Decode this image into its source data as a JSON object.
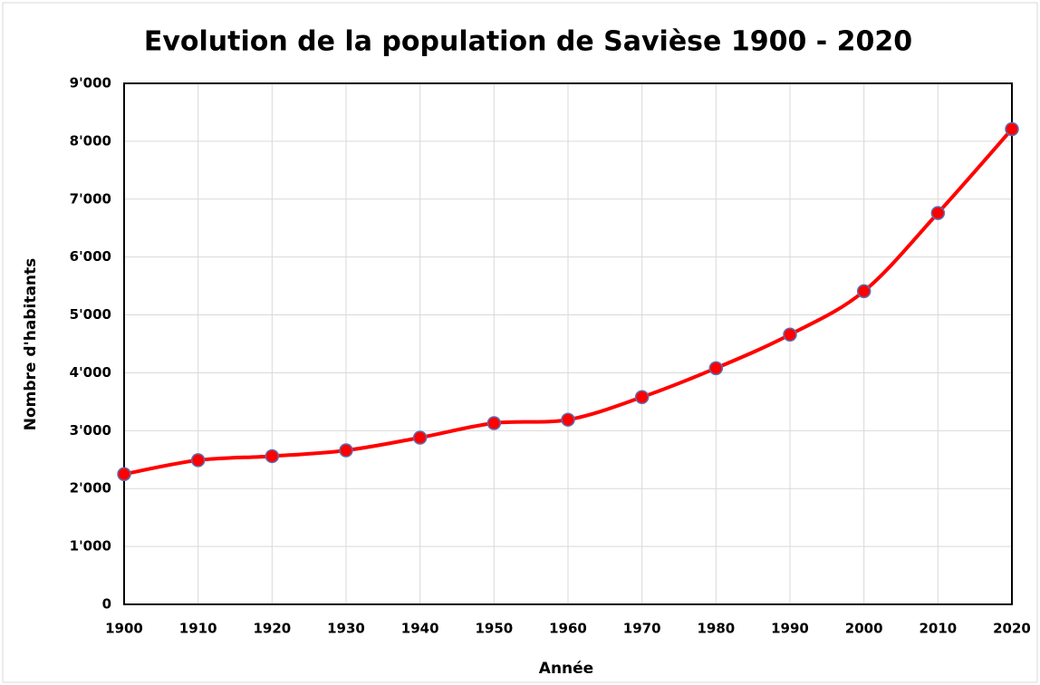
{
  "chart_data": {
    "type": "line",
    "title": "Evolution de la population de Savièse 1900 - 2020",
    "x_label": "Année",
    "y_label": "Nombre d'habitants",
    "x": [
      1900,
      1910,
      1920,
      1930,
      1940,
      1950,
      1960,
      1970,
      1980,
      1990,
      2000,
      2010,
      2020
    ],
    "series": [
      {
        "name": "Population",
        "color": "#ff0000",
        "values": [
          2250,
          2490,
          2560,
          2660,
          2880,
          3130,
          3190,
          3580,
          4080,
          4660,
          5410,
          6760,
          8210
        ]
      }
    ],
    "xlim": [
      1900,
      2020
    ],
    "xticks": [
      1900,
      1910,
      1920,
      1930,
      1940,
      1950,
      1960,
      1970,
      1980,
      1990,
      2000,
      2010,
      2020
    ],
    "ylim": [
      0,
      9000
    ],
    "yticks": [
      0,
      {
        "value": 1000,
        "label": "1'000"
      },
      {
        "value": 2000,
        "label": "2'000"
      },
      {
        "value": 3000,
        "label": "3'000"
      },
      {
        "value": 4000,
        "label": "4'000"
      },
      {
        "value": 5000,
        "label": "5'000"
      },
      {
        "value": 6000,
        "label": "6'000"
      },
      {
        "value": 7000,
        "label": "7'000"
      },
      {
        "value": 8000,
        "label": "8'000"
      },
      {
        "value": 9000,
        "label": "9'000"
      }
    ],
    "grid": true,
    "smooth": true
  }
}
